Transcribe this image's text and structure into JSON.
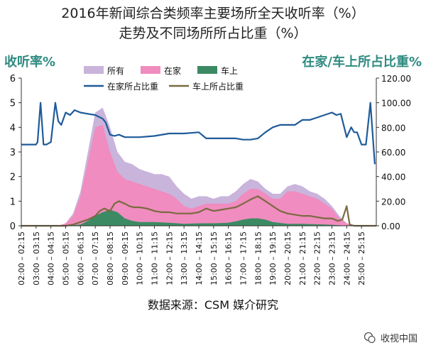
{
  "header": {
    "title_line1": "2016年新闻综合类频率主要场所全天收听率（%）",
    "title_line2": "走势及不同场所所占比重（%）"
  },
  "footer": {
    "source": "数据来源：CSM 媒介研究",
    "watermark": "收视中国"
  },
  "colors": {
    "all": "#c9b4dc",
    "home": "#f08cbf",
    "car": "#3c8a63",
    "home_share_line": "#1f5b9a",
    "car_share_line": "#7a6a40",
    "axis_label": "#2e8b80"
  },
  "chart_data": {
    "type": "area",
    "ylabel_left": "收听率%",
    "ylabel_right": "在家/车上所占比重%",
    "ylim_left": [
      0,
      6
    ],
    "ylim_right": [
      0,
      120
    ],
    "yticks_left": [
      "0",
      "1",
      "2",
      "3",
      "4",
      "5",
      "6"
    ],
    "yticks_right": [
      "0.00",
      "20.00",
      "40.00",
      "60.00",
      "80.00",
      "100.00",
      "120.00"
    ],
    "grid": false,
    "legend_position": "top",
    "x_labels": [
      "02:00 – 02:15",
      "03:00 – 03:15",
      "04:00 – 04:15",
      "05:00 – 05:15",
      "06:00 – 06:15",
      "07:00 – 07:15",
      "08:00 – 08:15",
      "09:00 – 09:15",
      "10:00 – 10:15",
      "11:00 – 11:15",
      "12:00 – 12:15",
      "13:00 – 13:15",
      "14:00 – 14:15",
      "15:00 – 15:15",
      "16:00 – 16:15",
      "17:00 – 17:15",
      "18:00 – 18:15",
      "19:00 – 19:15",
      "20:00 – 20:15",
      "21:00 – 21:15",
      "22:00 – 22:15",
      "23:00 – 23:15",
      "24:00 – 24:15",
      "25:00 – 25:15"
    ],
    "x_hours": [
      2,
      3,
      4,
      5,
      6,
      7,
      8,
      9,
      10,
      11,
      12,
      13,
      14,
      15,
      16,
      17,
      18,
      19,
      20,
      21,
      22,
      23,
      24,
      25
    ],
    "x_range": [
      2,
      26
    ],
    "series": [
      {
        "name": "所有",
        "kind": "area",
        "axis": "left",
        "x": [
          2,
          4.5,
          5,
          5.5,
          6,
          6.5,
          7,
          7.5,
          8,
          8.5,
          9,
          9.5,
          10,
          10.5,
          11,
          11.5,
          12,
          12.5,
          13,
          13.5,
          14,
          14.5,
          15,
          15.5,
          16,
          16.5,
          17,
          17.5,
          18,
          18.5,
          19,
          19.5,
          20,
          20.5,
          21,
          21.5,
          22,
          22.5,
          23,
          23.5,
          24,
          24.5,
          26
        ],
        "y": [
          0,
          0,
          0.1,
          0.5,
          1.4,
          3.0,
          4.6,
          4.8,
          4.0,
          3.0,
          2.6,
          2.5,
          2.3,
          2.2,
          2.1,
          2.1,
          2.0,
          1.6,
          1.3,
          1.1,
          1.2,
          1.2,
          1.1,
          1.2,
          1.2,
          1.4,
          1.7,
          1.9,
          1.8,
          1.5,
          1.3,
          1.3,
          1.6,
          1.7,
          1.6,
          1.4,
          1.3,
          1.1,
          0.8,
          0.4,
          0.1,
          0,
          0
        ]
      },
      {
        "name": "在家",
        "kind": "area",
        "axis": "left",
        "x": [
          2,
          4.5,
          5,
          5.5,
          6,
          6.5,
          7,
          7.5,
          8,
          8.5,
          9,
          9.5,
          10,
          10.5,
          11,
          11.5,
          12,
          12.5,
          13,
          13.5,
          14,
          14.5,
          15,
          15.5,
          16,
          16.5,
          17,
          17.5,
          18,
          18.5,
          19,
          19.5,
          20,
          20.5,
          21,
          21.5,
          22,
          22.5,
          23,
          23.5,
          24,
          24.5,
          26
        ],
        "y": [
          0,
          0,
          0.1,
          0.4,
          1.2,
          2.6,
          4.0,
          4.1,
          3.0,
          2.2,
          1.9,
          1.8,
          1.7,
          1.6,
          1.5,
          1.4,
          1.3,
          1.1,
          0.8,
          0.7,
          0.8,
          0.9,
          0.9,
          0.9,
          0.9,
          1.0,
          1.3,
          1.5,
          1.5,
          1.3,
          1.1,
          1.1,
          1.4,
          1.4,
          1.3,
          1.2,
          1.1,
          0.9,
          0.7,
          0.3,
          0.1,
          0,
          0
        ]
      },
      {
        "name": "车上",
        "kind": "area",
        "axis": "left",
        "x": [
          2,
          5,
          6,
          6.5,
          7,
          7.5,
          8,
          8.5,
          9,
          9.5,
          10,
          11,
          12,
          13,
          14,
          15,
          16,
          16.5,
          17,
          17.5,
          18,
          18.5,
          19,
          20,
          21,
          22,
          23,
          24,
          26
        ],
        "y": [
          0,
          0,
          0.05,
          0.2,
          0.4,
          0.55,
          0.65,
          0.55,
          0.3,
          0.2,
          0.15,
          0.15,
          0.12,
          0.08,
          0.1,
          0.1,
          0.12,
          0.18,
          0.25,
          0.3,
          0.3,
          0.25,
          0.15,
          0.08,
          0.08,
          0.06,
          0.04,
          0,
          0
        ]
      },
      {
        "name": "在家所占比重",
        "kind": "line",
        "axis": "right",
        "x": [
          2,
          3,
          3.1,
          3.3,
          3.5,
          3.7,
          4,
          4.3,
          4.5,
          4.7,
          5,
          5.3,
          5.6,
          6,
          6.5,
          7,
          7.5,
          7.7,
          8,
          8.3,
          8.6,
          9,
          9.5,
          10,
          11,
          12,
          13,
          14,
          14.5,
          15,
          15.5,
          16,
          16.5,
          17,
          17.5,
          18,
          18.5,
          19,
          19.5,
          20,
          20.5,
          21,
          21.5,
          22,
          22.5,
          23,
          23.3,
          23.6,
          24,
          24.3,
          24.5,
          24.7,
          25,
          25.3,
          25.6,
          25.9
        ],
        "y": [
          66,
          66,
          68,
          100,
          66,
          66,
          68,
          100,
          85,
          82,
          92,
          90,
          94,
          92,
          91,
          90,
          87,
          84,
          74,
          73,
          74,
          72,
          72,
          72,
          73,
          75,
          75,
          76,
          71,
          71,
          71,
          71,
          71,
          70,
          70,
          71,
          76,
          80,
          82,
          82,
          82,
          86,
          86,
          88,
          90,
          92,
          90,
          91,
          72,
          80,
          76,
          76,
          66,
          66,
          100,
          50
        ]
      },
      {
        "name": "车上所占比重",
        "kind": "line",
        "axis": "right",
        "x": [
          2,
          5,
          5.5,
          6,
          6.5,
          7,
          7.3,
          7.6,
          8,
          8.3,
          8.6,
          9,
          9.3,
          9.6,
          10,
          10.5,
          11,
          11.5,
          12,
          12.5,
          13,
          13.5,
          14,
          14.5,
          15,
          15.5,
          16,
          16.5,
          17,
          17.3,
          17.6,
          18,
          18.5,
          19,
          19.5,
          20,
          20.5,
          21,
          21.5,
          22,
          22.5,
          23,
          23.4,
          23.7,
          24,
          24.2,
          24.5,
          26
        ],
        "y": [
          0,
          0,
          1,
          3,
          5,
          8,
          12,
          14,
          12,
          18,
          20,
          18,
          16,
          15,
          15,
          14,
          12,
          11,
          11,
          10,
          10,
          10,
          11,
          14,
          12,
          13,
          14,
          15,
          18,
          20,
          22,
          24,
          20,
          16,
          12,
          10,
          9,
          8,
          8,
          7,
          6,
          6,
          4,
          5,
          16,
          1,
          0,
          0
        ]
      }
    ]
  }
}
